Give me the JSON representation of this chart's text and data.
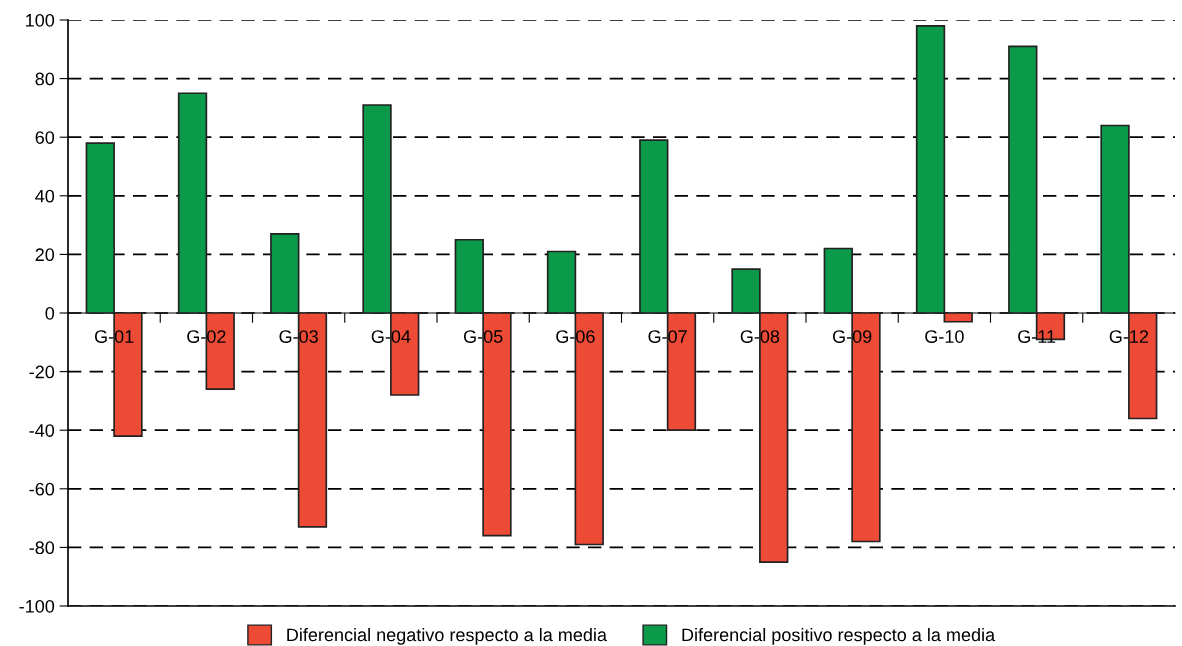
{
  "chart_data": {
    "type": "bar",
    "categories": [
      "G-01",
      "G-02",
      "G-03",
      "G-04",
      "G-05",
      "G-06",
      "G-07",
      "G-08",
      "G-09",
      "G-10",
      "G-11",
      "G-12"
    ],
    "series": [
      {
        "name": "Diferencial positivo respecto a la media",
        "color": "#0a9a4a",
        "values": [
          58,
          75,
          27,
          71,
          25,
          21,
          59,
          15,
          22,
          98,
          91,
          64
        ]
      },
      {
        "name": "Diferencial negativo respecto a la media",
        "color": "#ee4b36",
        "values": [
          -42,
          -26,
          -73,
          -28,
          -76,
          -79,
          -40,
          -85,
          -78,
          -3,
          -9,
          -36
        ]
      }
    ],
    "ylim": [
      -100,
      100
    ],
    "yticks": [
      -100,
      -80,
      -60,
      -40,
      -20,
      0,
      20,
      40,
      60,
      80,
      100
    ],
    "grid": "y",
    "legend": "bottom"
  }
}
